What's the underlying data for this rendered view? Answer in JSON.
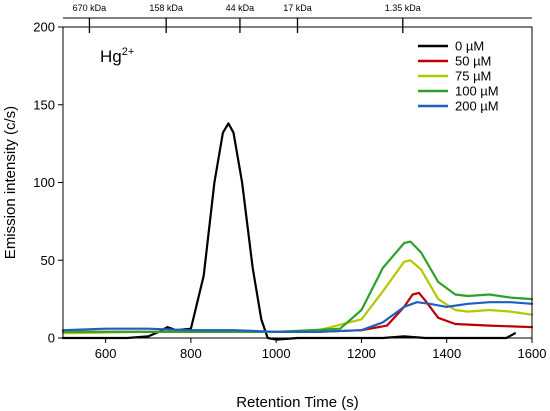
{
  "chart_data": {
    "type": "line",
    "annotation": "Hg",
    "annotation_sup": "2+",
    "xlabel": "Retention Time (s)",
    "ylabel": "Emission intensity (c/s)",
    "xlim": [
      500,
      1600
    ],
    "ylim": [
      0,
      200
    ],
    "x_ticks": [
      600,
      800,
      1000,
      1200,
      1400,
      1600
    ],
    "y_ticks": [
      0,
      50,
      100,
      150,
      200
    ],
    "grid": false,
    "legend_position": "top-right",
    "top_markers": [
      {
        "label": "670 kDa",
        "x": 562
      },
      {
        "label": "158 kDa",
        "x": 742
      },
      {
        "label": "44 kDa",
        "x": 915
      },
      {
        "label": "17 kDa",
        "x": 1050
      },
      {
        "label": "1.35 kDa",
        "x": 1297
      }
    ],
    "series": [
      {
        "name": "0 µM",
        "color": "#000000",
        "points": [
          [
            500,
            0
          ],
          [
            650,
            0
          ],
          [
            700,
            1
          ],
          [
            725,
            4
          ],
          [
            745,
            7
          ],
          [
            765,
            5
          ],
          [
            800,
            6
          ],
          [
            830,
            40
          ],
          [
            855,
            100
          ],
          [
            875,
            132
          ],
          [
            888,
            138
          ],
          [
            900,
            132
          ],
          [
            920,
            100
          ],
          [
            945,
            45
          ],
          [
            965,
            12
          ],
          [
            980,
            0
          ],
          [
            1000,
            -1
          ],
          [
            1050,
            0
          ],
          [
            1200,
            0
          ],
          [
            1250,
            0
          ],
          [
            1300,
            1
          ],
          [
            1350,
            0
          ],
          [
            1540,
            0
          ],
          [
            1560,
            3
          ]
        ]
      },
      {
        "name": "50 µM",
        "color": "#c00000",
        "points": [
          [
            500,
            4
          ],
          [
            700,
            4
          ],
          [
            800,
            4
          ],
          [
            900,
            4
          ],
          [
            1000,
            4
          ],
          [
            1100,
            4
          ],
          [
            1200,
            5
          ],
          [
            1260,
            8
          ],
          [
            1300,
            20
          ],
          [
            1320,
            28
          ],
          [
            1335,
            29
          ],
          [
            1350,
            24
          ],
          [
            1380,
            13
          ],
          [
            1420,
            9
          ],
          [
            1500,
            8
          ],
          [
            1600,
            7
          ]
        ]
      },
      {
        "name": "75 µM",
        "color": "#b4c800",
        "points": [
          [
            500,
            3
          ],
          [
            700,
            4
          ],
          [
            900,
            4
          ],
          [
            1000,
            4
          ],
          [
            1100,
            5
          ],
          [
            1200,
            12
          ],
          [
            1250,
            30
          ],
          [
            1300,
            49
          ],
          [
            1315,
            50
          ],
          [
            1340,
            44
          ],
          [
            1380,
            25
          ],
          [
            1420,
            18
          ],
          [
            1450,
            17
          ],
          [
            1500,
            18
          ],
          [
            1550,
            17
          ],
          [
            1600,
            15
          ]
        ]
      },
      {
        "name": "100 µM",
        "color": "#2ea02c",
        "points": [
          [
            500,
            4
          ],
          [
            700,
            4
          ],
          [
            900,
            4
          ],
          [
            1000,
            4
          ],
          [
            1080,
            5
          ],
          [
            1150,
            6
          ],
          [
            1200,
            18
          ],
          [
            1250,
            45
          ],
          [
            1300,
            61
          ],
          [
            1315,
            62
          ],
          [
            1340,
            55
          ],
          [
            1380,
            36
          ],
          [
            1420,
            28
          ],
          [
            1450,
            27
          ],
          [
            1500,
            28
          ],
          [
            1550,
            26
          ],
          [
            1600,
            25
          ]
        ]
      },
      {
        "name": "200 µM",
        "color": "#1f5fbf",
        "points": [
          [
            500,
            5
          ],
          [
            600,
            6
          ],
          [
            700,
            6
          ],
          [
            800,
            5
          ],
          [
            900,
            5
          ],
          [
            1000,
            4
          ],
          [
            1100,
            4
          ],
          [
            1200,
            5
          ],
          [
            1250,
            10
          ],
          [
            1300,
            20
          ],
          [
            1330,
            23
          ],
          [
            1360,
            22
          ],
          [
            1400,
            20
          ],
          [
            1450,
            22
          ],
          [
            1500,
            23
          ],
          [
            1550,
            23
          ],
          [
            1600,
            22
          ]
        ]
      }
    ]
  }
}
